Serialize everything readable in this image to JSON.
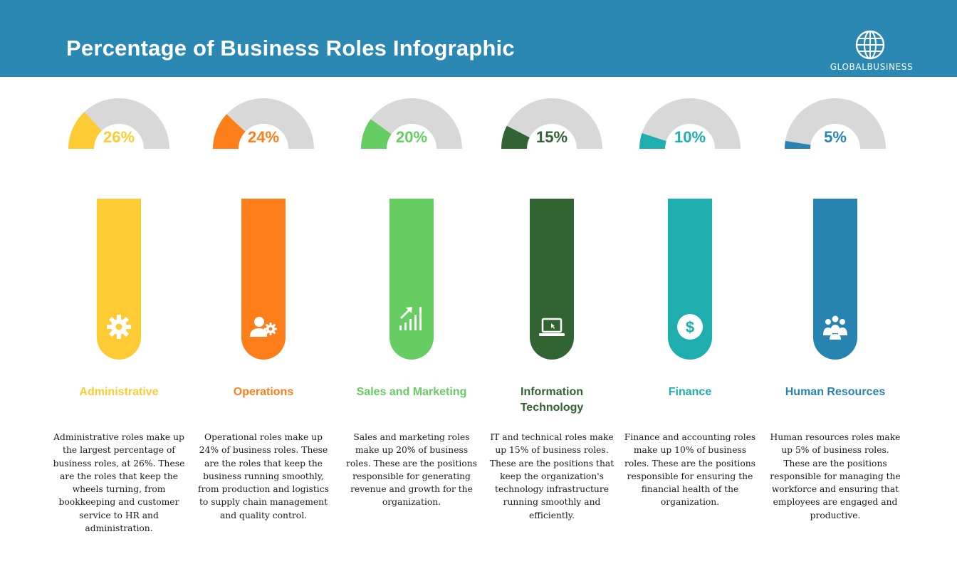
{
  "header": {
    "title": "Percentage of Business Roles Infographic",
    "logo_text": "GLOBALBUSINESS",
    "logo_icon": "globe-icon",
    "background": "#2a88b3"
  },
  "chart_data": {
    "type": "gauge",
    "title": "Percentage of Business Roles Infographic",
    "max": 100,
    "categories": [
      "Administrative",
      "Operations",
      "Sales and Marketing",
      "Information Technology",
      "Finance",
      "Human Resources"
    ],
    "values": [
      26,
      24,
      20,
      15,
      10,
      5
    ],
    "value_labels": [
      "26%",
      "24%",
      "20%",
      "15%",
      "10%",
      "5%"
    ],
    "colors": [
      "#fecb34",
      "#fe7e1a",
      "#66cd62",
      "#316333",
      "#1eaead",
      "#2784b1"
    ],
    "track_color": "#d8d8d8"
  },
  "columns": [
    {
      "label": "Administrative",
      "icon": "gear-icon",
      "description": "Administrative roles make up the largest percentage of business roles, at 26%. These are the roles that keep the wheels turning, from bookkeeping and customer service to HR and administration."
    },
    {
      "label": "Operations",
      "icon": "user-gear-icon",
      "description": "Operational roles make up 24% of business roles. These are the roles that keep the business running smoothly, from production and logistics to supply chain management and quality control."
    },
    {
      "label": "Sales and Marketing",
      "icon": "growth-chart-icon",
      "description": "Sales and marketing roles make up 20% of business roles. These are the positions responsible for generating revenue and growth for the organization."
    },
    {
      "label": "Information Technology",
      "icon": "laptop-icon",
      "description": "IT and technical roles make up 15% of business roles. These are the positions that keep the organization's technology infrastructure running smoothly and efficiently."
    },
    {
      "label": "Finance",
      "icon": "dollar-coin-icon",
      "description": "Finance and accounting roles make up 10% of business roles. These are the positions responsible for ensuring the financial health of the organization."
    },
    {
      "label": "Human Resources",
      "icon": "people-group-icon",
      "description": "Human resources roles make up 5% of business roles. These are the positions responsible for managing the workforce and ensuring that employees are engaged and productive."
    }
  ]
}
